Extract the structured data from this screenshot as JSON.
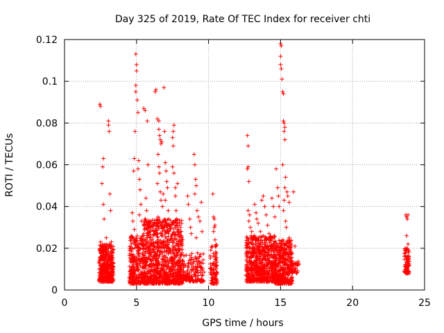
{
  "chart_data": {
    "type": "scatter",
    "title": "Day 325 of 2019, Rate Of TEC Index for receiver chti",
    "xlabel": "GPS time / hours",
    "ylabel": "ROTI / TECUs",
    "xlim": [
      0,
      25
    ],
    "ylim": [
      0,
      0.12
    ],
    "grid": true,
    "marker": "+",
    "color": "#ff0000",
    "x_ticks": [
      0,
      5,
      10,
      15,
      20,
      25
    ],
    "x_tick_labels": [
      "0",
      "5",
      "10",
      "15",
      "20",
      "25"
    ],
    "y_ticks": [
      0,
      0.02,
      0.04,
      0.06,
      0.08,
      0.1,
      0.12
    ],
    "y_tick_labels": [
      "0",
      "0.02",
      "0.04",
      "0.06",
      "0.08",
      "0.1",
      "0.12"
    ],
    "series": [
      {
        "name": "ROTI",
        "points": [
          [
            2.45,
            0.089
          ],
          [
            2.5,
            0.088
          ],
          [
            2.7,
            0.063
          ],
          [
            2.65,
            0.059
          ],
          [
            2.6,
            0.051
          ],
          [
            2.7,
            0.041
          ],
          [
            2.75,
            0.034
          ],
          [
            3.05,
            0.081
          ],
          [
            3.05,
            0.079
          ],
          [
            3.1,
            0.076
          ],
          [
            3.15,
            0.046
          ],
          [
            3.2,
            0.038
          ],
          [
            2.9,
            0.025
          ],
          [
            2.5,
            0.023
          ],
          [
            3.25,
            0.023
          ],
          [
            4.7,
            0.037
          ],
          [
            4.8,
            0.057
          ],
          [
            4.85,
            0.063
          ],
          [
            4.9,
            0.076
          ],
          [
            4.95,
            0.095
          ],
          [
            4.95,
            0.098
          ],
          [
            5.0,
            0.105
          ],
          [
            5.0,
            0.108
          ],
          [
            4.95,
            0.113
          ],
          [
            5.05,
            0.091
          ],
          [
            5.1,
            0.085
          ],
          [
            5.15,
            0.062
          ],
          [
            5.1,
            0.058
          ],
          [
            5.2,
            0.053
          ],
          [
            5.25,
            0.048
          ],
          [
            5.3,
            0.041
          ],
          [
            5.2,
            0.036
          ],
          [
            4.75,
            0.033
          ],
          [
            4.85,
            0.029
          ],
          [
            5.35,
            0.033
          ],
          [
            5.5,
            0.027
          ],
          [
            5.5,
            0.087
          ],
          [
            5.6,
            0.086
          ],
          [
            5.75,
            0.081
          ],
          [
            5.8,
            0.06
          ],
          [
            5.65,
            0.044
          ],
          [
            5.7,
            0.038
          ],
          [
            5.85,
            0.033
          ],
          [
            5.9,
            0.028
          ],
          [
            6.3,
            0.095
          ],
          [
            6.35,
            0.096
          ],
          [
            6.45,
            0.082
          ],
          [
            6.55,
            0.081
          ],
          [
            6.55,
            0.077
          ],
          [
            6.6,
            0.074
          ],
          [
            6.65,
            0.072
          ],
          [
            6.7,
            0.07
          ],
          [
            6.75,
            0.071
          ],
          [
            6.5,
            0.065
          ],
          [
            6.55,
            0.059
          ],
          [
            6.6,
            0.056
          ],
          [
            6.45,
            0.051
          ],
          [
            6.65,
            0.047
          ],
          [
            6.7,
            0.043
          ],
          [
            6.8,
            0.04
          ],
          [
            6.9,
            0.097
          ],
          [
            6.95,
            0.076
          ],
          [
            7.0,
            0.061
          ],
          [
            7.05,
            0.057
          ],
          [
            7.1,
            0.052
          ],
          [
            7.15,
            0.049
          ],
          [
            6.85,
            0.046
          ],
          [
            7.0,
            0.043
          ],
          [
            7.2,
            0.038
          ],
          [
            7.25,
            0.034
          ],
          [
            7.3,
            0.031
          ],
          [
            6.5,
            0.035
          ],
          [
            6.6,
            0.033
          ],
          [
            7.5,
            0.073
          ],
          [
            7.55,
            0.069
          ],
          [
            7.6,
            0.079
          ],
          [
            7.55,
            0.076
          ],
          [
            7.5,
            0.059
          ],
          [
            7.6,
            0.056
          ],
          [
            7.7,
            0.049
          ],
          [
            7.7,
            0.045
          ],
          [
            7.75,
            0.038
          ],
          [
            7.8,
            0.034
          ],
          [
            7.85,
            0.051
          ],
          [
            7.95,
            0.031
          ],
          [
            8.05,
            0.03
          ],
          [
            8.1,
            0.028
          ],
          [
            8.2,
            0.024
          ],
          [
            8.55,
            0.045
          ],
          [
            8.6,
            0.041
          ],
          [
            8.7,
            0.034
          ],
          [
            8.75,
            0.03
          ],
          [
            8.8,
            0.027
          ],
          [
            9.0,
            0.065
          ],
          [
            9.05,
            0.06
          ],
          [
            9.1,
            0.053
          ],
          [
            9.15,
            0.05
          ],
          [
            9.05,
            0.046
          ],
          [
            9.2,
            0.038
          ],
          [
            9.3,
            0.035
          ],
          [
            9.4,
            0.033
          ],
          [
            9.5,
            0.042
          ],
          [
            9.55,
            0.028
          ],
          [
            9.15,
            0.025
          ],
          [
            10.3,
            0.046
          ],
          [
            10.35,
            0.035
          ],
          [
            10.4,
            0.034
          ],
          [
            10.45,
            0.031
          ],
          [
            10.4,
            0.03
          ],
          [
            10.35,
            0.028
          ],
          [
            10.45,
            0.024
          ],
          [
            12.7,
            0.074
          ],
          [
            12.75,
            0.069
          ],
          [
            12.75,
            0.059
          ],
          [
            12.7,
            0.058
          ],
          [
            12.8,
            0.052
          ],
          [
            12.75,
            0.038
          ],
          [
            12.85,
            0.036
          ],
          [
            12.8,
            0.033
          ],
          [
            12.9,
            0.03
          ],
          [
            13.0,
            0.028
          ],
          [
            13.2,
            0.041
          ],
          [
            13.3,
            0.037
          ],
          [
            13.35,
            0.034
          ],
          [
            13.45,
            0.032
          ],
          [
            13.6,
            0.028
          ],
          [
            13.7,
            0.043
          ],
          [
            13.8,
            0.045
          ],
          [
            13.9,
            0.04
          ],
          [
            14.0,
            0.036
          ],
          [
            14.1,
            0.031
          ],
          [
            14.2,
            0.027
          ],
          [
            14.4,
            0.044
          ],
          [
            14.5,
            0.04
          ],
          [
            14.6,
            0.035
          ],
          [
            14.7,
            0.058
          ],
          [
            14.8,
            0.049
          ],
          [
            14.85,
            0.045
          ],
          [
            14.9,
            0.04
          ],
          [
            15.0,
            0.118
          ],
          [
            15.05,
            0.117
          ],
          [
            15.0,
            0.112
          ],
          [
            15.0,
            0.108
          ],
          [
            15.05,
            0.106
          ],
          [
            15.1,
            0.101
          ],
          [
            15.15,
            0.095
          ],
          [
            15.2,
            0.094
          ],
          [
            15.2,
            0.081
          ],
          [
            15.25,
            0.08
          ],
          [
            15.3,
            0.078
          ],
          [
            15.25,
            0.076
          ],
          [
            15.3,
            0.072
          ],
          [
            15.15,
            0.06
          ],
          [
            15.35,
            0.054
          ],
          [
            15.3,
            0.049
          ],
          [
            15.45,
            0.047
          ],
          [
            15.5,
            0.045
          ],
          [
            15.6,
            0.042
          ],
          [
            15.25,
            0.043
          ],
          [
            15.2,
            0.038
          ],
          [
            15.35,
            0.033
          ],
          [
            15.4,
            0.03
          ],
          [
            15.6,
            0.025
          ],
          [
            15.7,
            0.022
          ],
          [
            15.9,
            0.047
          ],
          [
            16.0,
            0.021
          ],
          [
            23.7,
            0.036
          ],
          [
            23.75,
            0.035
          ],
          [
            23.8,
            0.034
          ],
          [
            23.85,
            0.036
          ],
          [
            23.75,
            0.026
          ],
          [
            23.85,
            0.022
          ],
          [
            23.8,
            0.02
          ]
        ]
      }
    ],
    "dense_clusters": [
      {
        "x_range": [
          2.4,
          3.4
        ],
        "y_range": [
          0.004,
          0.022
        ],
        "count": 380
      },
      {
        "x_range": [
          4.5,
          5.5
        ],
        "y_range": [
          0.003,
          0.026
        ],
        "count": 260
      },
      {
        "x_range": [
          5.5,
          8.2
        ],
        "y_range": [
          0.003,
          0.034
        ],
        "count": 900
      },
      {
        "x_range": [
          8.2,
          9.7
        ],
        "y_range": [
          0.004,
          0.018
        ],
        "count": 160
      },
      {
        "x_range": [
          10.1,
          10.6
        ],
        "y_range": [
          0.003,
          0.022
        ],
        "count": 90
      },
      {
        "x_range": [
          12.6,
          14.6
        ],
        "y_range": [
          0.004,
          0.026
        ],
        "count": 600
      },
      {
        "x_range": [
          14.6,
          15.8
        ],
        "y_range": [
          0.003,
          0.024
        ],
        "count": 400
      },
      {
        "x_range": [
          15.8,
          16.3
        ],
        "y_range": [
          0.008,
          0.014
        ],
        "count": 30
      },
      {
        "x_range": [
          23.6,
          23.95
        ],
        "y_range": [
          0.008,
          0.02
        ],
        "count": 80
      }
    ]
  }
}
